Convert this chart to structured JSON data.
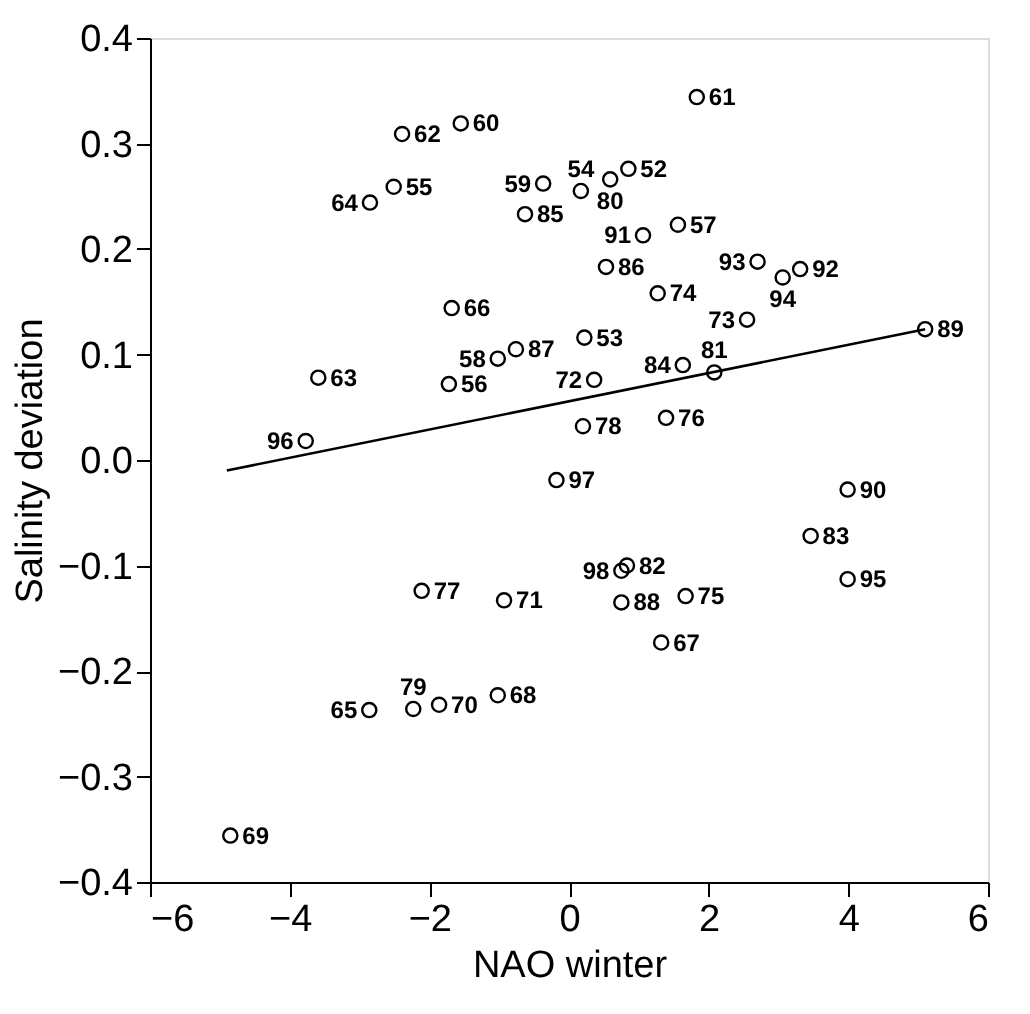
{
  "chart_data": {
    "type": "scatter",
    "xlabel": "NAO winter",
    "ylabel": "Salinity deviation",
    "xlim": [
      -6,
      6
    ],
    "xticks": [
      -6,
      -4,
      -2,
      0,
      2,
      4,
      6
    ],
    "ylim": [
      -0.4,
      0.4
    ],
    "yticks": [
      -0.4,
      -0.3,
      -0.2,
      -0.1,
      {
        "value": 0,
        "label": "0.0"
      },
      0.1,
      0.2,
      0.3,
      0.4
    ],
    "grid": false,
    "series": [
      {
        "color": "#000000",
        "marker": "circle",
        "x": [
          -2.39,
          -1.55,
          -2.51,
          -2.85,
          -0.37,
          -0.63,
          -1.68,
          -0.76,
          -1.02,
          -3.59,
          -1.72,
          -3.77,
          1.83,
          0.85,
          0.17,
          0.59,
          1.56,
          1.06,
          0.53,
          2.7,
          3.31,
          3.06,
          1.27,
          2.55,
          0.22,
          5.1,
          1.63,
          2.08,
          0.36,
          0.2,
          1.39,
          -0.18,
          -2.11,
          -0.93,
          -1.02,
          -1.86,
          -2.23,
          -2.86,
          -4.85,
          3.99,
          3.46,
          0.83,
          0.75,
          3.99,
          1.67,
          0.75,
          1.32
        ],
        "values": [
          0.309,
          0.319,
          0.259,
          0.244,
          0.262,
          0.233,
          0.144,
          0.105,
          0.096,
          0.078,
          0.072,
          0.018,
          0.344,
          0.276,
          0.255,
          0.266,
          0.223,
          0.213,
          0.183,
          0.188,
          0.181,
          0.173,
          0.158,
          0.133,
          0.116,
          0.124,
          0.09,
          0.083,
          0.076,
          0.032,
          0.04,
          -0.019,
          -0.124,
          -0.133,
          -0.223,
          -0.232,
          -0.236,
          -0.237,
          -0.356,
          -0.028,
          -0.072,
          -0.1,
          -0.105,
          -0.113,
          -0.129,
          -0.135,
          -0.173
        ]
      },
      {
        "type": "line",
        "color": "#000000",
        "line_style": "solid",
        "x": [
          -4.9,
          5.1
        ],
        "values": [
          -0.01,
          0.124
        ]
      }
    ],
    "annotations": [
      {
        "text": "62",
        "x": -2.39,
        "y": 0.309
      },
      {
        "text": "60",
        "x": -1.55,
        "y": 0.319
      },
      {
        "text": "55",
        "x": -2.51,
        "y": 0.259
      },
      {
        "text": "64",
        "x": -2.85,
        "y": 0.244
      },
      {
        "text": "59",
        "x": -0.37,
        "y": 0.262
      },
      {
        "text": "85",
        "x": -0.63,
        "y": 0.233
      },
      {
        "text": "66",
        "x": -1.68,
        "y": 0.144
      },
      {
        "text": "87",
        "x": -0.76,
        "y": 0.105
      },
      {
        "text": "58",
        "x": -1.02,
        "y": 0.096
      },
      {
        "text": "63",
        "x": -3.59,
        "y": 0.078
      },
      {
        "text": "56",
        "x": -1.72,
        "y": 0.072
      },
      {
        "text": "96",
        "x": -3.77,
        "y": 0.018
      },
      {
        "text": "61",
        "x": 1.83,
        "y": 0.344
      },
      {
        "text": "52",
        "x": 0.85,
        "y": 0.276
      },
      {
        "text": "54",
        "x": 0.17,
        "y": 0.255
      },
      {
        "text": "80",
        "x": 0.59,
        "y": 0.266
      },
      {
        "text": "57",
        "x": 1.56,
        "y": 0.223
      },
      {
        "text": "91",
        "x": 1.06,
        "y": 0.213
      },
      {
        "text": "86",
        "x": 0.53,
        "y": 0.183
      },
      {
        "text": "93",
        "x": 2.7,
        "y": 0.188
      },
      {
        "text": "92",
        "x": 3.31,
        "y": 0.181
      },
      {
        "text": "94",
        "x": 3.06,
        "y": 0.173
      },
      {
        "text": "74",
        "x": 1.27,
        "y": 0.158
      },
      {
        "text": "73",
        "x": 2.55,
        "y": 0.133
      },
      {
        "text": "53",
        "x": 0.22,
        "y": 0.116
      },
      {
        "text": "89",
        "x": 5.1,
        "y": 0.124
      },
      {
        "text": "84",
        "x": 1.63,
        "y": 0.09
      },
      {
        "text": "81",
        "x": 2.08,
        "y": 0.083
      },
      {
        "text": "72",
        "x": 0.36,
        "y": 0.076
      },
      {
        "text": "78",
        "x": 0.2,
        "y": 0.032
      },
      {
        "text": "76",
        "x": 1.39,
        "y": 0.04
      },
      {
        "text": "97",
        "x": -0.18,
        "y": -0.019
      },
      {
        "text": "77",
        "x": -2.11,
        "y": -0.124
      },
      {
        "text": "71",
        "x": -0.93,
        "y": -0.133
      },
      {
        "text": "68",
        "x": -1.02,
        "y": -0.223
      },
      {
        "text": "70",
        "x": -1.86,
        "y": -0.232
      },
      {
        "text": "79",
        "x": -2.23,
        "y": -0.236
      },
      {
        "text": "65",
        "x": -2.86,
        "y": -0.237
      },
      {
        "text": "69",
        "x": -4.85,
        "y": -0.356
      },
      {
        "text": "90",
        "x": 3.99,
        "y": -0.028
      },
      {
        "text": "83",
        "x": 3.46,
        "y": -0.072
      },
      {
        "text": "82",
        "x": 0.83,
        "y": -0.1
      },
      {
        "text": "98",
        "x": 0.75,
        "y": -0.105
      },
      {
        "text": "95",
        "x": 3.99,
        "y": -0.113
      },
      {
        "text": "75",
        "x": 1.67,
        "y": -0.129
      },
      {
        "text": "88",
        "x": 0.75,
        "y": -0.135
      },
      {
        "text": "67",
        "x": 1.32,
        "y": -0.173
      }
    ]
  }
}
